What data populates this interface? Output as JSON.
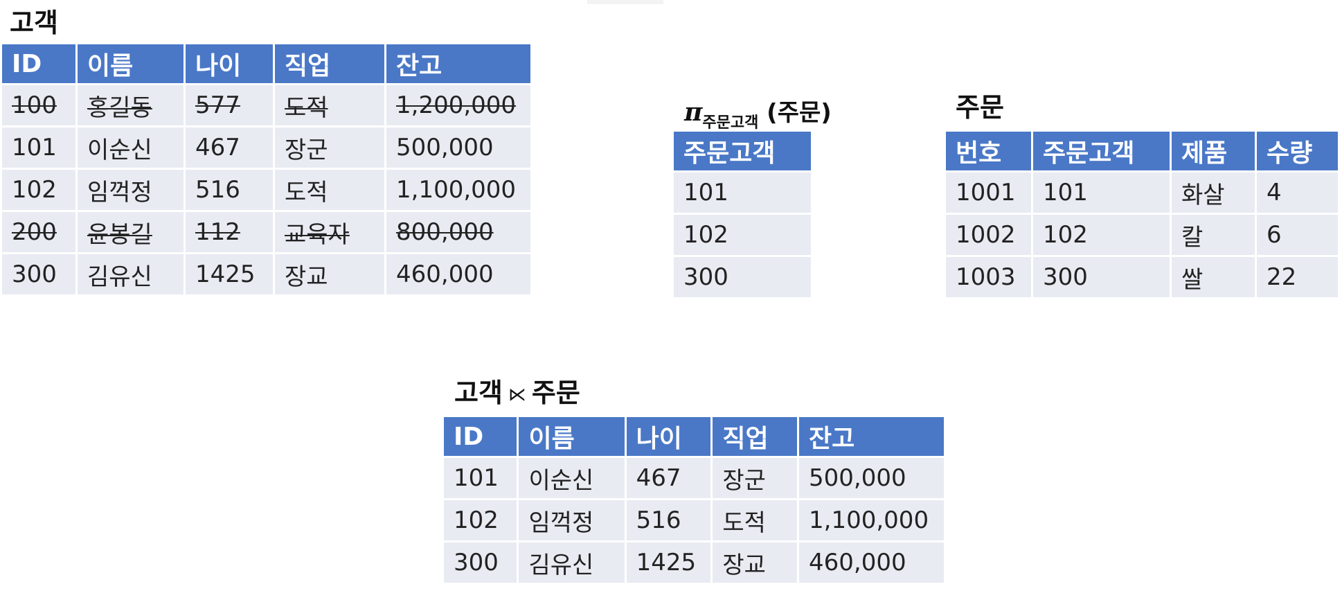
{
  "customer": {
    "title": "고객",
    "columns": [
      "ID",
      "이름",
      "나이",
      "직업",
      "잔고"
    ],
    "rows": [
      {
        "cells": [
          "100",
          "홍길동",
          "577",
          "도적",
          "1,200,000"
        ],
        "struck": true
      },
      {
        "cells": [
          "101",
          "이순신",
          "467",
          "장군",
          "500,000"
        ],
        "struck": false
      },
      {
        "cells": [
          "102",
          "임꺽정",
          "516",
          "도적",
          "1,100,000"
        ],
        "struck": false
      },
      {
        "cells": [
          "200",
          "윤봉길",
          "112",
          "교육자",
          "800,000"
        ],
        "struck": true
      },
      {
        "cells": [
          "300",
          "김유신",
          "1425",
          "장교",
          "460,000"
        ],
        "struck": false
      }
    ]
  },
  "projection": {
    "title_symbol": "π",
    "title_subscript": "주문고객",
    "title_arg": "(주문)",
    "columns": [
      "주문고객"
    ],
    "rows": [
      {
        "cells": [
          "101"
        ]
      },
      {
        "cells": [
          "102"
        ]
      },
      {
        "cells": [
          "300"
        ]
      }
    ]
  },
  "orders": {
    "title": "주문",
    "columns": [
      "번호",
      "주문고객",
      "제품",
      "수량"
    ],
    "rows": [
      {
        "cells": [
          "1001",
          "101",
          "화살",
          "4"
        ]
      },
      {
        "cells": [
          "1002",
          "102",
          "칼",
          "6"
        ]
      },
      {
        "cells": [
          "1003",
          "300",
          "쌀",
          "22"
        ]
      }
    ]
  },
  "semijoin": {
    "title_left": "고객",
    "operator": "⋉",
    "title_right": "주문",
    "columns": [
      "ID",
      "이름",
      "나이",
      "직업",
      "잔고"
    ],
    "rows": [
      {
        "cells": [
          "101",
          "이순신",
          "467",
          "장군",
          "500,000"
        ]
      },
      {
        "cells": [
          "102",
          "임꺽정",
          "516",
          "도적",
          "1,100,000"
        ]
      },
      {
        "cells": [
          "300",
          "김유신",
          "1425",
          "장교",
          "460,000"
        ]
      }
    ]
  }
}
